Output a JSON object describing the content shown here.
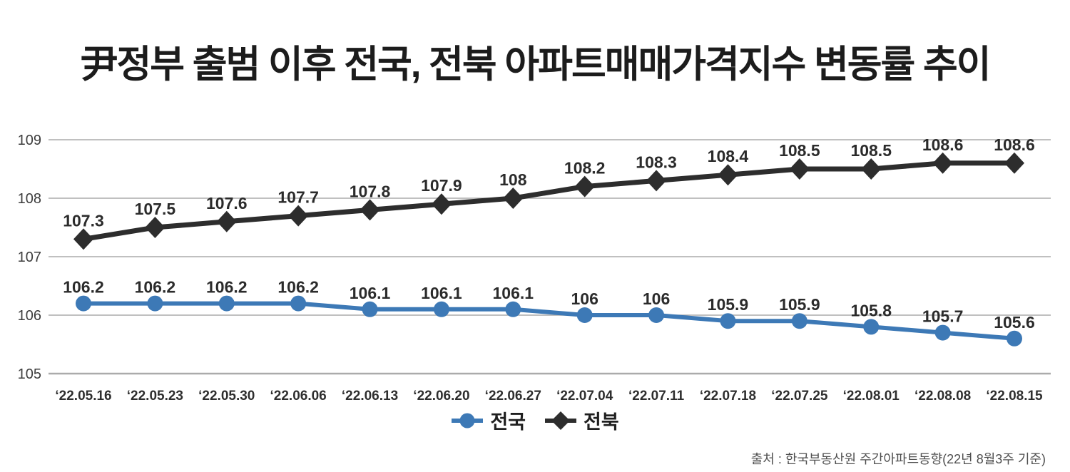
{
  "title": "尹정부 출범 이후 전국, 전북 아파트매매가격지수 변동률 추이",
  "source": "출처 : 한국부동산원 주간아파트동향(22년 8월3주 기준)",
  "legend": [
    {
      "label": "전국",
      "marker": "circle",
      "color": "#3d79b6"
    },
    {
      "label": "전북",
      "marker": "diamond",
      "color": "#2d2d2d"
    }
  ],
  "chart_data": {
    "type": "line",
    "title": "尹정부 출범 이후 전국, 전북 아파트매매가격지수 변동률 추이",
    "categories": [
      "‘22.05.16",
      "‘22.05.23",
      "‘22.05.30",
      "‘22.06.06",
      "‘22.06.13",
      "‘22.06.20",
      "‘22.06.27",
      "‘22.07.04",
      "‘22.07.11",
      "‘22.07.18",
      "‘22.07.25",
      "‘22.08.01",
      "‘22.08.08",
      "‘22.08.15"
    ],
    "series": [
      {
        "name": "전국",
        "marker": "circle",
        "color": "#3d79b6",
        "values": [
          106.2,
          106.2,
          106.2,
          106.2,
          106.1,
          106.1,
          106.1,
          106,
          106,
          105.9,
          105.9,
          105.8,
          105.7,
          105.6
        ]
      },
      {
        "name": "전북",
        "marker": "diamond",
        "color": "#2d2d2d",
        "values": [
          107.3,
          107.5,
          107.6,
          107.7,
          107.8,
          107.9,
          108,
          108.2,
          108.3,
          108.4,
          108.5,
          108.5,
          108.6,
          108.6
        ]
      }
    ],
    "y_ticks": [
      105,
      106,
      107,
      108,
      109
    ],
    "ylim": [
      105,
      109
    ],
    "xlabel": "",
    "ylabel": "",
    "grid": "horizontal",
    "legend_position": "bottom",
    "colors": {
      "grid": "#ababab",
      "axis_text": "#3d3d3d",
      "label_text": "#2b2b2b"
    }
  }
}
